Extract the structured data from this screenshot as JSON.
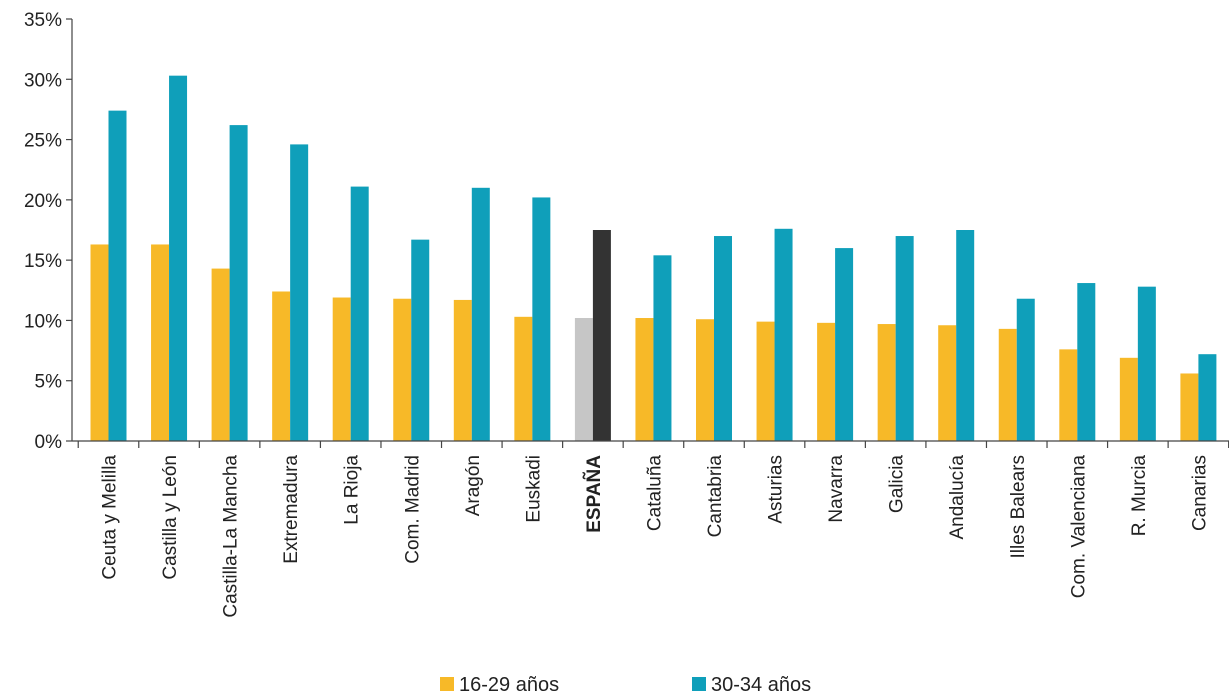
{
  "chart_data": {
    "type": "bar",
    "categories": [
      "Ceuta y Melilla",
      "Castilla y León",
      "Castilla-La Mancha",
      "Extremadura",
      "La Rioja",
      "Com. Madrid",
      "Aragón",
      "Euskadi",
      "ESPAÑA",
      "Cataluña",
      "Cantabria",
      "Asturias",
      "Navarra",
      "Galicia",
      "Andalucía",
      "Illes Balears",
      "Com. Valenciana",
      "R. Murcia",
      "Canarias"
    ],
    "highlight_category": "ESPAÑA",
    "series": [
      {
        "name": "16-29 años",
        "color": "#f7b928",
        "highlight_color": "#c6c6c6",
        "values": [
          16.3,
          16.3,
          14.3,
          12.4,
          11.9,
          11.8,
          11.7,
          10.3,
          10.2,
          10.2,
          10.1,
          9.9,
          9.8,
          9.7,
          9.6,
          9.3,
          7.6,
          6.9,
          5.6
        ]
      },
      {
        "name": "30-34 años",
        "color": "#0f9fba",
        "highlight_color": "#333333",
        "values": [
          27.4,
          30.3,
          26.2,
          24.6,
          21.1,
          16.7,
          21.0,
          20.2,
          17.5,
          15.4,
          17.0,
          17.6,
          16.0,
          17.0,
          17.5,
          11.8,
          13.1,
          12.8,
          7.2
        ]
      }
    ],
    "ylim": [
      0,
      35
    ],
    "yticks": [
      0,
      5,
      10,
      15,
      20,
      25,
      30,
      35
    ],
    "ytick_labels": [
      "0%",
      "5%",
      "10%",
      "15%",
      "20%",
      "25%",
      "30%",
      "35%"
    ],
    "grid": false,
    "legend": "bottom-center"
  }
}
